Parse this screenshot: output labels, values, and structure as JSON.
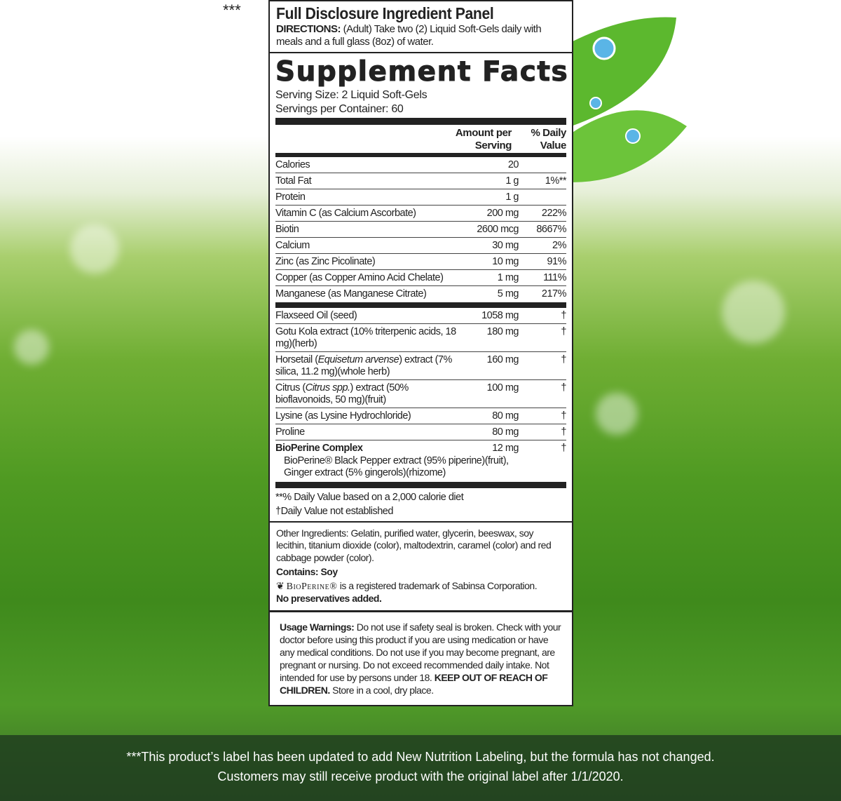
{
  "asterisks": "***",
  "header": {
    "title": "Full Disclosure Ingredient Panel",
    "directions_label": "DIRECTIONS:",
    "directions_text": " (Adult) Take two (2) Liquid Soft-Gels daily with meals and a full glass (8oz) of water."
  },
  "facts": {
    "title": "Supplement Facts",
    "serving_size": "Serving Size:  2 Liquid Soft-Gels",
    "servings_per_container": "Servings per Container:  60",
    "col_amount": "Amount per Serving",
    "col_dv": "% Daily Value",
    "nutrients": [
      {
        "name": "Calories",
        "amount": "20",
        "dv": ""
      },
      {
        "name": "Total Fat",
        "amount": "1 g",
        "dv": "1%**"
      },
      {
        "name": "Protein",
        "amount": "1 g",
        "dv": ""
      },
      {
        "name": "Vitamin C (as Calcium Ascorbate)",
        "amount": "200 mg",
        "dv": "222%"
      },
      {
        "name": "Biotin",
        "amount": "2600 mcg",
        "dv": "8667%"
      },
      {
        "name": "Calcium",
        "amount": "30 mg",
        "dv": "2%"
      },
      {
        "name": "Zinc (as Zinc Picolinate)",
        "amount": "10 mg",
        "dv": "91%"
      },
      {
        "name": "Copper (as Copper Amino Acid Chelate)",
        "amount": "1 mg",
        "dv": "111%"
      },
      {
        "name": "Manganese (as Manganese Citrate)",
        "amount": "5 mg",
        "dv": "217%"
      }
    ],
    "others": [
      {
        "name": "Flaxseed Oil (seed)",
        "amount": "1058 mg",
        "dv": "†"
      },
      {
        "name": "Gotu Kola extract (10% triterpenic acids, 18 mg)(herb)",
        "amount": "180 mg",
        "dv": "†"
      },
      {
        "name_a": "Horsetail (",
        "name_i": "Equisetum arvense",
        "name_b": ") extract (7% silica, 11.2 mg)(whole herb)",
        "amount": "160 mg",
        "dv": "†"
      },
      {
        "name_a": "Citrus (",
        "name_i": "Citrus spp.",
        "name_b": ") extract (50% bioflavonoids, 50 mg)(fruit)",
        "amount": "100 mg",
        "dv": "†"
      },
      {
        "name": "Lysine (as Lysine Hydrochloride)",
        "amount": "80 mg",
        "dv": "†"
      },
      {
        "name": "Proline",
        "amount": "80 mg",
        "dv": "†"
      },
      {
        "name": "BioPerine Complex",
        "sub": "BioPerine® Black Pepper extract (95% piperine)(fruit), Ginger extract (5% gingerols)(rhizome)",
        "amount": "12 mg",
        "dv": "†"
      }
    ],
    "note1": "**% Daily Value based on a 2,000 calorie diet",
    "note2": "†Daily Value not established"
  },
  "other_ingredients": {
    "text": "Other Ingredients:  Gelatin, purified water, glycerin, beeswax, soy lecithin, titanium dioxide (color), maltodextrin, caramel (color) and red cabbage powder (color).",
    "contains": "Contains: Soy",
    "bioperine_logo": "BioPerine®",
    "trademark": " is a registered trademark of Sabinsa Corporation.",
    "no_preservatives": "No preservatives added."
  },
  "warnings": {
    "label": "Usage Warnings:",
    "text": "  Do not use if safety seal is broken. Check with your doctor before using this product if you are using medication or have any medical conditions. Do not use if you may become pregnant, are pregnant or nursing. Do not exceed recommended daily intake. Not intended for use by persons under 18. ",
    "bold": "KEEP OUT OF REACH OF CHILDREN.",
    "tail": " Store in a cool, dry place."
  },
  "footer": {
    "line1": "***This product’s label has been updated to add New Nutrition Labeling, but the formula has not changed.",
    "line2": "Customers may still receive product with the original label after 1/1/2020."
  },
  "colors": {
    "leaf": "#5cb82e",
    "grass": "#4f9a22",
    "footer_bg": "#1e3c1e"
  }
}
